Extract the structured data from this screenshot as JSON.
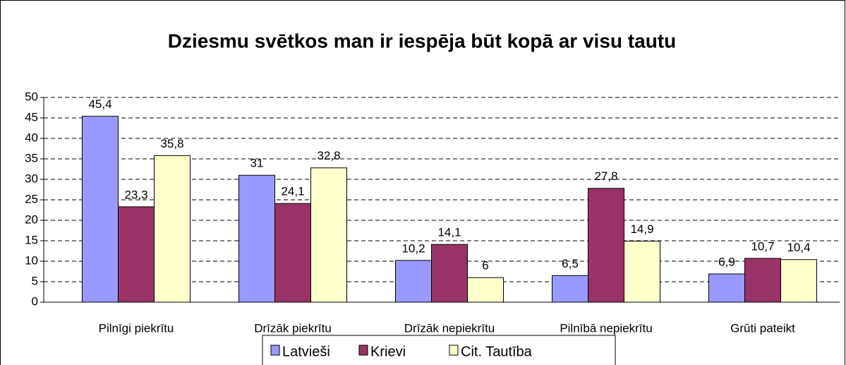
{
  "chart_data": {
    "type": "bar",
    "title": "Dziesmu svētkos man ir iespēja būt kopā ar visu tautu",
    "categories": [
      "Pilnīgi piekrītu",
      "Drīzāk piekrītu",
      "Drīzāk nepiekrītu",
      "Pilnībā nepiekrītu",
      "Grūti pateikt"
    ],
    "series": [
      {
        "name": "Latvieši",
        "color": "#9999ff",
        "values": [
          45.4,
          31,
          10.2,
          6.5,
          6.9
        ],
        "value_labels": [
          "45,4",
          "31",
          "10,2",
          "6,5",
          "6,9"
        ]
      },
      {
        "name": "Krievi",
        "color": "#993366",
        "values": [
          23.3,
          24.1,
          14.1,
          27.8,
          10.7
        ],
        "value_labels": [
          "23,3",
          "24,1",
          "14,1",
          "27,8",
          "10,7"
        ]
      },
      {
        "name": "Cit. Tautība",
        "color": "#ffffcc",
        "values": [
          35.8,
          32.8,
          6,
          14.9,
          10.4
        ],
        "value_labels": [
          "35,8",
          "32,8",
          "6",
          "14,9",
          "10,4"
        ]
      }
    ],
    "ylim": [
      0,
      50
    ],
    "yticks": [
      0,
      5,
      10,
      15,
      20,
      25,
      30,
      35,
      40,
      45,
      50
    ],
    "grid": true,
    "legend": "bottom"
  }
}
